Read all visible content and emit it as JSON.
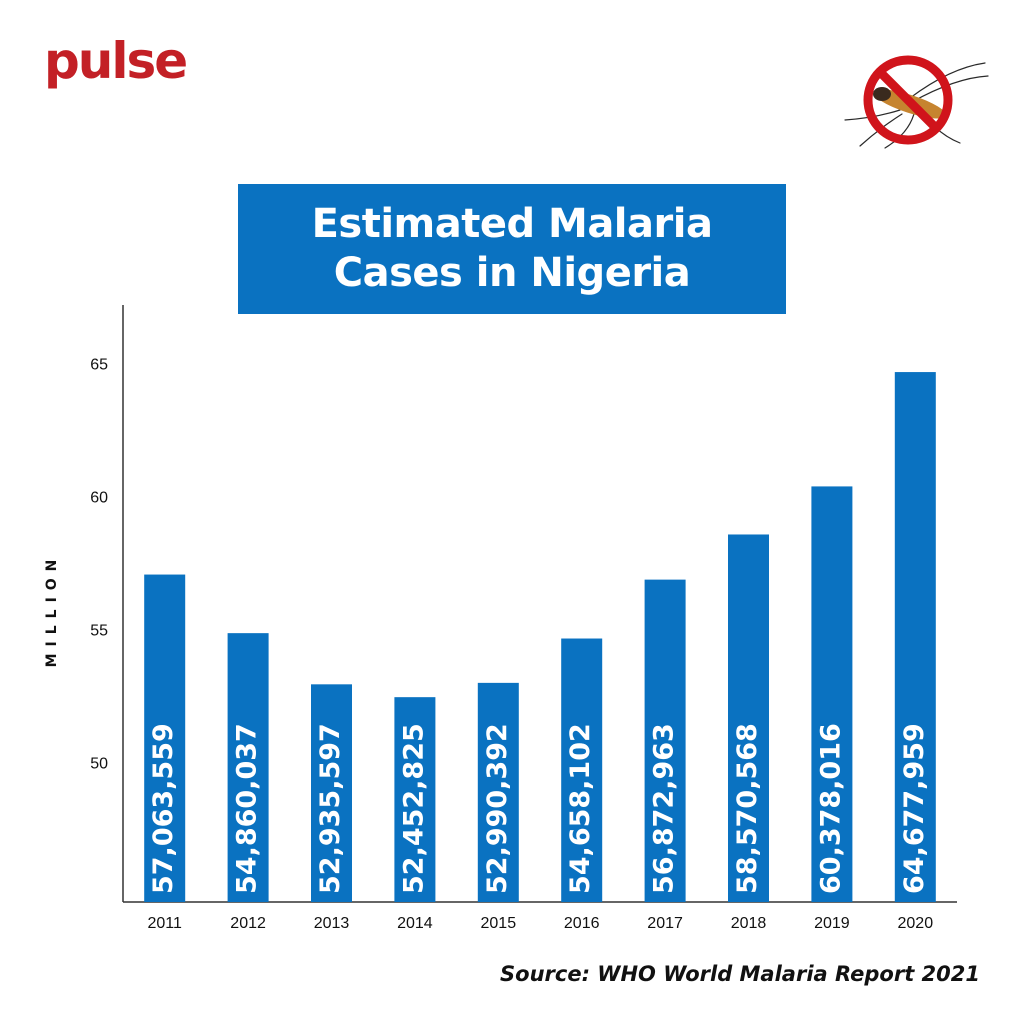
{
  "brand": {
    "logo_text": "pulse",
    "accent": "#c32026"
  },
  "icons": {
    "no_mosquito": "no-mosquito-icon"
  },
  "colors": {
    "bar": "#0a72c1",
    "title_bg": "#0a72c1",
    "axis": "#333333"
  },
  "chart_data": {
    "type": "bar",
    "title": "Estimated Malaria Cases in Nigeria",
    "xlabel": "",
    "ylabel": "MILLION",
    "categories": [
      "2011",
      "2012",
      "2013",
      "2014",
      "2015",
      "2016",
      "2017",
      "2018",
      "2019",
      "2020"
    ],
    "values": [
      57063559,
      54860037,
      52935597,
      52452825,
      52990392,
      54658102,
      56872963,
      58570568,
      60378016,
      64677959
    ],
    "value_labels": [
      "57,063,559",
      "54,860,037",
      "52,935,597",
      "52,452,825",
      "52,990,392",
      "54,658,102",
      "56,872,963",
      "58,570,568",
      "60,378,016",
      "64,677,959"
    ],
    "yticks": [
      50,
      55,
      60,
      65
    ],
    "ylim": [
      44.75,
      67.2
    ],
    "yunit_divisor": 1000000,
    "grid": false,
    "legend": "none"
  },
  "source": "Source: WHO World Malaria Report 2021"
}
